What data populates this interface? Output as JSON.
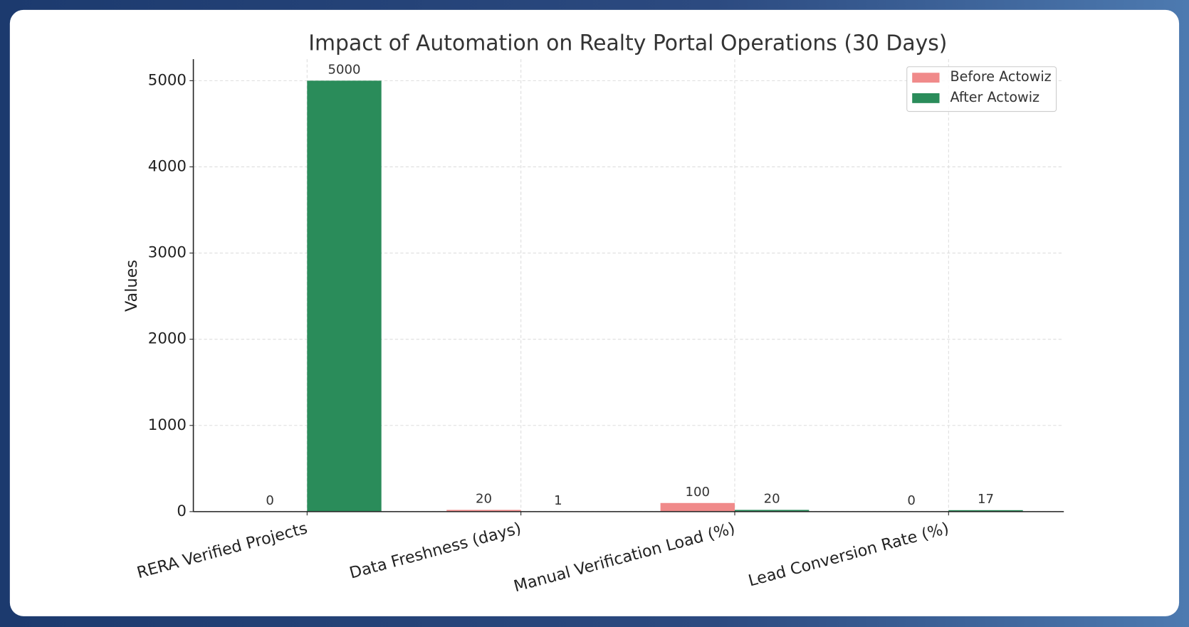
{
  "chart_data": {
    "type": "bar",
    "title": "Impact of Automation on Realty Portal Operations (30 Days)",
    "y_label": "Values",
    "categories": [
      "RERA Verified Projects",
      "Data Freshness (days)",
      "Manual Verification Load (%)",
      "Lead Conversion Rate (%)"
    ],
    "series": [
      {
        "name": "Before Actowiz",
        "color": "#f08a8a",
        "values": [
          0,
          20,
          100,
          0
        ]
      },
      {
        "name": "After Actowiz",
        "color": "#2a8c5a",
        "values": [
          5000,
          1,
          20,
          17
        ]
      }
    ],
    "ylim": [
      0,
      5250
    ],
    "yticks": [
      0,
      1000,
      2000,
      3000,
      4000,
      5000
    ],
    "grid": true,
    "legend": "upper right"
  }
}
